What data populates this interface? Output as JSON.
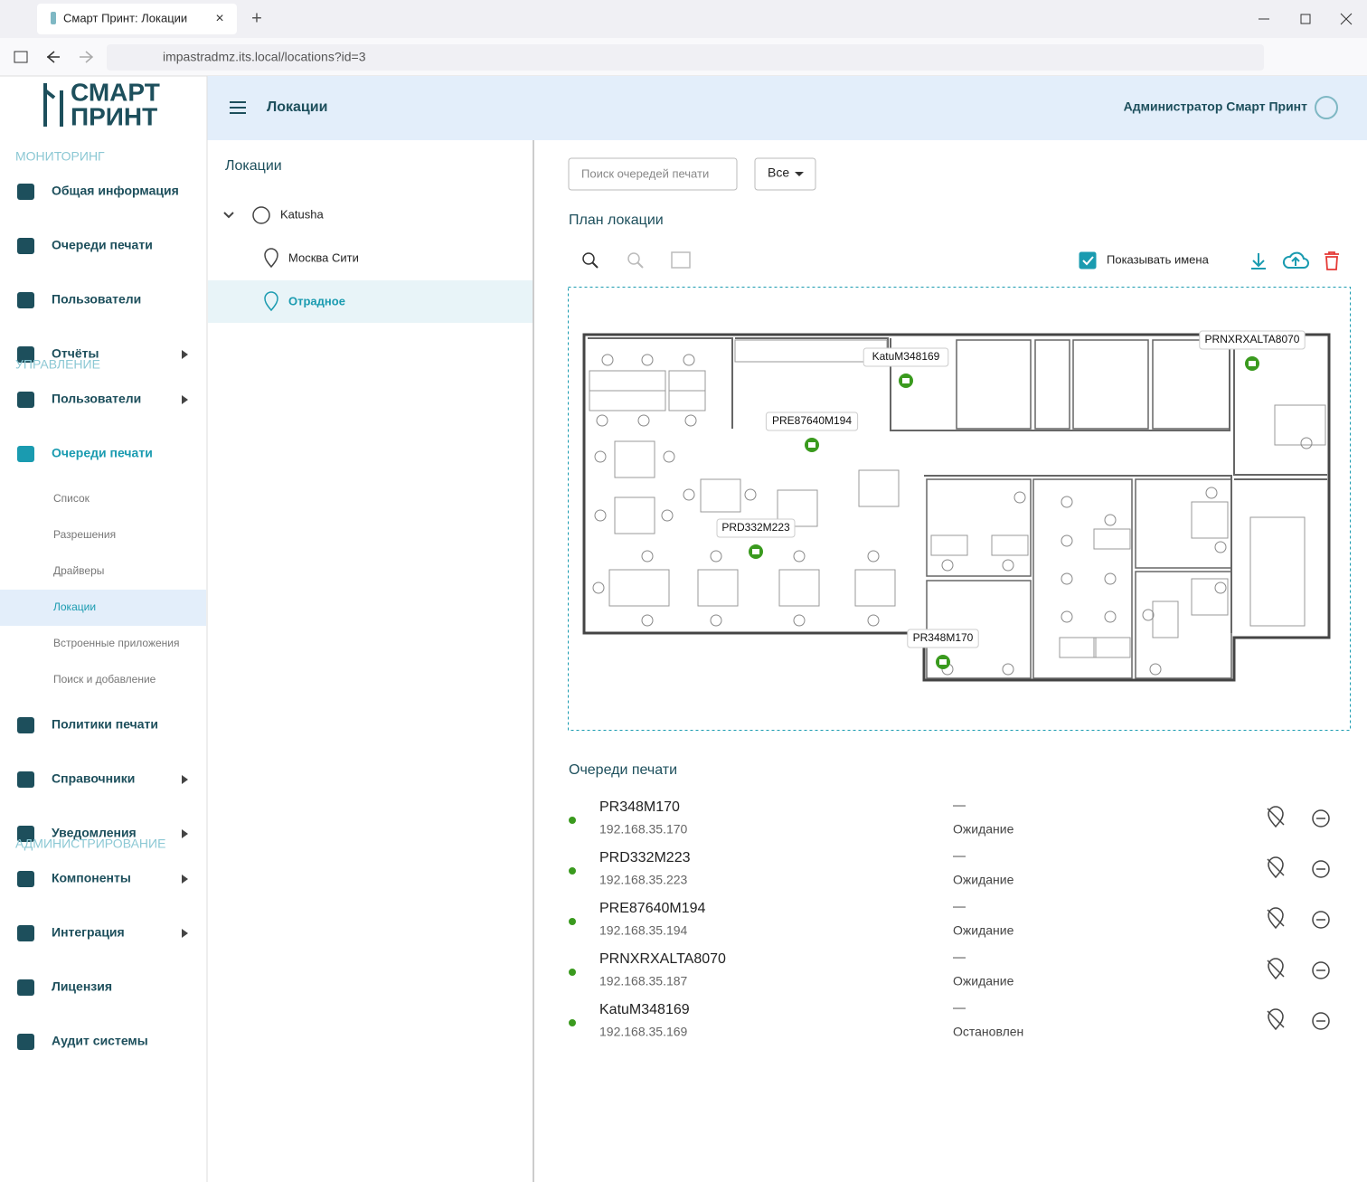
{
  "browser": {
    "tab_title": "Смарт Принт: Локации",
    "url": "impastradmz.its.local/locations?id=3"
  },
  "sidebar": {
    "logo": [
      "СМАРТ",
      "ПРИНТ"
    ],
    "sections": [
      {
        "title": "МОНИТОРИНГ",
        "items": [
          {
            "label": "Общая информация"
          },
          {
            "label": "Очереди печати"
          },
          {
            "label": "Пользователи"
          },
          {
            "label": "Отчёты",
            "expandable": true
          }
        ]
      },
      {
        "title": "УПРАВЛЕНИЕ",
        "items": [
          {
            "label": "Пользователи",
            "expandable": true
          },
          {
            "label": "Очереди печати",
            "active": true,
            "children": [
              {
                "label": "Список"
              },
              {
                "label": "Разрешения"
              },
              {
                "label": "Драйверы"
              },
              {
                "label": "Локации",
                "active": true
              },
              {
                "label": "Встроенные приложения"
              },
              {
                "label": "Поиск и добавление"
              }
            ]
          },
          {
            "label": "Политики печати"
          },
          {
            "label": "Справочники",
            "expandable": true
          },
          {
            "label": "Уведомления",
            "expandable": true
          }
        ]
      },
      {
        "title": "АДМИНИСТРИРОВАНИЕ",
        "items": [
          {
            "label": "Компоненты",
            "expandable": true
          },
          {
            "label": "Интеграция",
            "expandable": true
          },
          {
            "label": "Лицензия"
          },
          {
            "label": "Аудит системы"
          }
        ]
      }
    ]
  },
  "header": {
    "title": "Локации",
    "user": "Администратор Смарт Принт"
  },
  "locations": {
    "title": "Локации",
    "tree": [
      {
        "label": "Katusha",
        "expanded": true,
        "children": [
          {
            "label": "Москва Сити"
          },
          {
            "label": "Отрадное",
            "selected": true
          }
        ]
      }
    ]
  },
  "content": {
    "search_placeholder": "Поиск очередей печати",
    "filter": "Все",
    "plan_title": "План локации",
    "show_names_label": "Показывать имена",
    "show_names": true,
    "queues_title": "Очереди печати",
    "queues": [
      {
        "name": "PR348M170",
        "ip": "192.168.35.170",
        "job": "—",
        "status": "Ожидание"
      },
      {
        "name": "PRD332M223",
        "ip": "192.168.35.223",
        "job": "—",
        "status": "Ожидание"
      },
      {
        "name": "PRE87640M194",
        "ip": "192.168.35.194",
        "job": "—",
        "status": "Ожидание"
      },
      {
        "name": "PRNXRXALTA8070",
        "ip": "192.168.35.187",
        "job": "—",
        "status": "Ожидание"
      },
      {
        "name": "KatuM348169",
        "ip": "192.168.35.169",
        "job": "—",
        "status": "Остановлен"
      }
    ]
  }
}
